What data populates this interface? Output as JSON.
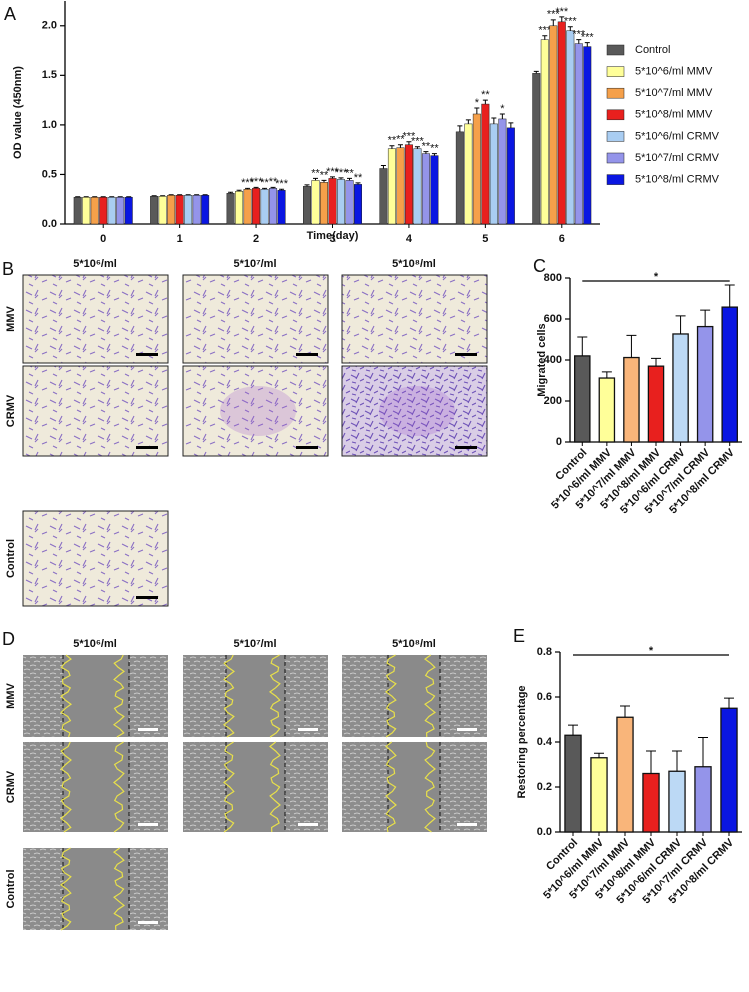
{
  "panels": {
    "letters": [
      "A",
      "B",
      "C",
      "D",
      "E"
    ],
    "B": {
      "columns": [
        "5*10⁶/ml",
        "5*10⁷/ml",
        "5*10⁸/ml"
      ],
      "rows": [
        "MMV",
        "CRMV",
        "Control"
      ]
    },
    "D": {
      "columns": [
        "5*10⁶/ml",
        "5*10⁷/ml",
        "5*10⁸/ml"
      ],
      "rows": [
        "MMV",
        "CRMV",
        "Control"
      ]
    }
  },
  "chart_data": [
    {
      "type": "grouped_bar",
      "xlabel": "Time(day)",
      "ylabel": "OD value (450nm)",
      "categories": [
        "0",
        "1",
        "2",
        "3",
        "4",
        "5",
        "6"
      ],
      "ylim": [
        0,
        2.25
      ],
      "yticks": [
        {
          "value": 0,
          "label": "0.0"
        },
        {
          "value": 0.5,
          "label": "0.5"
        },
        {
          "value": 1,
          "label": "1.0"
        },
        {
          "value": 1.5,
          "label": "1.5"
        },
        {
          "value": 2,
          "label": "2.0"
        }
      ],
      "series": [
        {
          "name": "Control",
          "color": "#595959",
          "values": [
            0.27,
            0.28,
            0.31,
            0.38,
            0.56,
            0.93,
            1.52
          ],
          "errors": [
            0.005,
            0.005,
            0.01,
            0.015,
            0.03,
            0.06,
            0.02
          ],
          "stars": [
            null,
            null,
            null,
            null,
            null,
            null,
            null
          ]
        },
        {
          "name": "5*10^6/ml MMV",
          "color": "#ffff99",
          "values": [
            0.27,
            0.28,
            0.33,
            0.44,
            0.76,
            1.01,
            1.86
          ],
          "errors": [
            0.005,
            0.005,
            0.01,
            0.02,
            0.03,
            0.04,
            0.04
          ],
          "stars": [
            null,
            null,
            null,
            "**",
            "**",
            null,
            "***"
          ]
        },
        {
          "name": "5*10^7/ml MMV",
          "color": "#f5a04a",
          "values": [
            0.27,
            0.29,
            0.35,
            0.42,
            0.77,
            1.11,
            2.0
          ],
          "errors": [
            0.005,
            0.005,
            0.01,
            0.02,
            0.03,
            0.06,
            0.06
          ],
          "stars": [
            null,
            null,
            "***",
            "**",
            "**",
            "*",
            "***"
          ]
        },
        {
          "name": "5*10^8/ml MMV",
          "color": "#e8201e",
          "values": [
            0.27,
            0.29,
            0.36,
            0.46,
            0.8,
            1.21,
            2.04
          ],
          "errors": [
            0.005,
            0.005,
            0.01,
            0.015,
            0.03,
            0.04,
            0.05
          ],
          "stars": [
            null,
            null,
            "***",
            "***",
            "***",
            "**",
            "***"
          ]
        },
        {
          "name": "5*10^6/ml CRMV",
          "color": "#a9cdf2",
          "values": [
            0.27,
            0.29,
            0.35,
            0.45,
            0.76,
            1.01,
            1.95
          ],
          "errors": [
            0.005,
            0.005,
            0.01,
            0.015,
            0.02,
            0.06,
            0.04
          ],
          "stars": [
            null,
            null,
            "**",
            "***",
            "***",
            null,
            "***"
          ]
        },
        {
          "name": "5*10^7/ml CRMV",
          "color": "#9494ea",
          "values": [
            0.27,
            0.29,
            0.36,
            0.44,
            0.71,
            1.06,
            1.82
          ],
          "errors": [
            0.005,
            0.005,
            0.01,
            0.02,
            0.02,
            0.05,
            0.04
          ],
          "stars": [
            null,
            null,
            "**",
            "**",
            "**",
            "*",
            "***"
          ]
        },
        {
          "name": "5*10^8/ml CRMV",
          "color": "#0a16e2",
          "values": [
            0.27,
            0.29,
            0.34,
            0.4,
            0.69,
            0.97,
            1.79
          ],
          "errors": [
            0.005,
            0.005,
            0.01,
            0.015,
            0.02,
            0.05,
            0.04
          ],
          "stars": [
            null,
            null,
            "***",
            "**",
            "**",
            null,
            "***"
          ]
        }
      ]
    },
    {
      "type": "bar",
      "ylabel": "Migrated cells",
      "categories": [
        "Control",
        "5*10^6/ml MMV",
        "5*10^7/ml MMV",
        "5*10^8/ml MMV",
        "5*10^6/ml CRMV",
        "5*10^7/ml CRMV",
        "5*10^8/ml CRMV"
      ],
      "values": [
        420,
        312,
        412,
        370,
        527,
        563,
        658
      ],
      "errors": [
        92,
        30,
        108,
        38,
        88,
        80,
        108
      ],
      "colors": [
        "#595959",
        "#ffff99",
        "#f9b57a",
        "#e8201e",
        "#bcd9f5",
        "#9494ea",
        "#0a16e2"
      ],
      "ylim": [
        0,
        800
      ],
      "yticks": [
        0,
        200,
        400,
        600,
        800
      ],
      "significance": "*"
    },
    {
      "type": "bar",
      "ylabel": "Restoring percentage",
      "categories": [
        "Control",
        "5*10^6/ml MMV",
        "5*10^7/ml MMV",
        "5*10^8/ml MMV",
        "5*10^6/ml CRMV",
        "5*10^7/ml CRMV",
        "5*10^8/ml CRMV"
      ],
      "values": [
        0.43,
        0.33,
        0.51,
        0.26,
        0.27,
        0.29,
        0.55
      ],
      "errors": [
        0.045,
        0.02,
        0.05,
        0.1,
        0.09,
        0.13,
        0.045
      ],
      "colors": [
        "#595959",
        "#ffff99",
        "#f9b57a",
        "#e8201e",
        "#bcd9f5",
        "#9494ea",
        "#0a16e2"
      ],
      "ylim": [
        0,
        0.8
      ],
      "yticks": [
        {
          "value": 0,
          "label": "0.0"
        },
        {
          "value": 0.2,
          "label": "0.2"
        },
        {
          "value": 0.4,
          "label": "0.4"
        },
        {
          "value": 0.6,
          "label": "0.6"
        },
        {
          "value": 0.8,
          "label": "0.8"
        }
      ],
      "significance": "*"
    }
  ]
}
